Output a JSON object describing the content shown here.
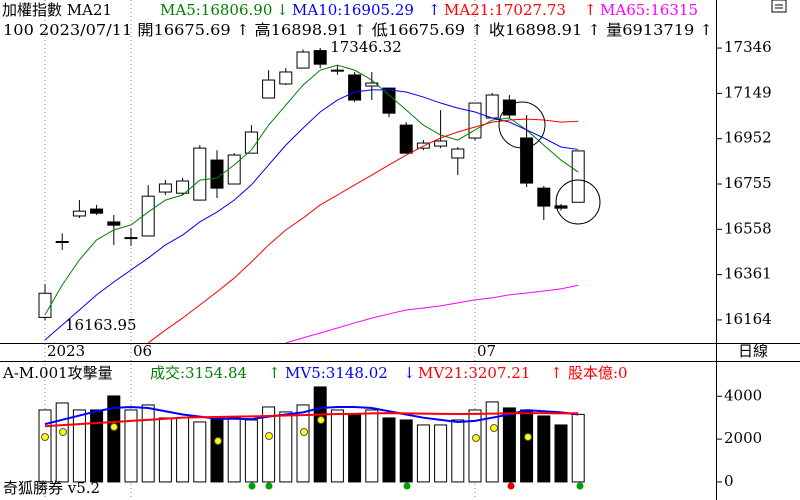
{
  "chart_data": [
    {
      "type": "candlestick",
      "header": [
        {
          "text": "加權指數 MA21",
          "color": "#000000"
        },
        {
          "text": "MA5:16806.90",
          "color": "#008000"
        },
        {
          "text": "↓",
          "color": "#008000"
        },
        {
          "text": "MA10:16905.29",
          "color": "#0000ff"
        },
        {
          "text": "↑",
          "color": "#0000ff"
        },
        {
          "text": "MA21:17027.73",
          "color": "#ff0000"
        },
        {
          "text": "↑",
          "color": "#ff0000"
        },
        {
          "text": "MA65:16315",
          "color": "#ff00ff"
        }
      ],
      "subheader": "100 2023/07/11 開16675.69 ↑ 高16898.91 ↑ 低16675.69 ↑ 收16898.91 ↑ 量6913719 ↑",
      "period_label": "日線",
      "annotations": [
        {
          "text": "17346.32",
          "index": 16
        },
        {
          "text": "16163.95",
          "index": 0
        }
      ],
      "categories": [
        "2023",
        null,
        null,
        null,
        null,
        "06",
        null,
        null,
        null,
        null,
        null,
        null,
        null,
        null,
        null,
        null,
        null,
        null,
        null,
        null,
        null,
        null,
        null,
        null,
        null,
        "07",
        null,
        null,
        null,
        null,
        null,
        null
      ],
      "open": [
        16175,
        16505,
        16616,
        16646,
        16590,
        16520,
        16529,
        16720,
        16715,
        16685,
        16859,
        16755,
        16889,
        17129,
        17190,
        17259,
        17335,
        17250,
        17229,
        17181,
        17172,
        17011,
        16911,
        16920,
        16868,
        16955,
        17042,
        17120,
        16955,
        16737,
        16660,
        16675.69
      ],
      "high": [
        16320,
        16540,
        16685,
        16664,
        16620,
        16563,
        16750,
        16772,
        16781,
        16924,
        16902,
        16889,
        17011,
        17250,
        17259,
        17340,
        17346.32,
        17270,
        17242,
        17242,
        17172,
        17024,
        16946,
        17076,
        16916,
        17107,
        17151,
        17142,
        17055,
        16746,
        16668,
        16898.91
      ],
      "low": [
        16163.95,
        16468,
        16607,
        16620,
        16490,
        16486,
        16529,
        16707,
        16707,
        16685,
        16694,
        16755,
        16889,
        17129,
        17185,
        17259,
        17259,
        17230,
        17111,
        17120,
        17046,
        16889,
        16902,
        16911,
        16794,
        16946,
        17042,
        17042,
        16742,
        16598,
        16640,
        16675.69
      ],
      "close": [
        16280,
        16505,
        16637,
        16628,
        16576,
        16522,
        16702,
        16755,
        16768,
        16911,
        16737,
        16881,
        16981,
        17207,
        17242,
        17329,
        17276,
        17250,
        17120,
        17194,
        17063,
        16889,
        16933,
        16942,
        16907,
        17107,
        17142,
        17055,
        16759,
        16659,
        16650,
        16898.91
      ],
      "up_color": "#ffffff",
      "down_color": "#000000",
      "series": [
        {
          "name": "MA5",
          "color": "#008000",
          "values": [
            16186,
            16316,
            16425,
            16512,
            16555,
            16577,
            16633,
            16685,
            16707,
            16772,
            16781,
            16838,
            16903,
            17011,
            17098,
            17185,
            17250,
            17272,
            17250,
            17207,
            17142,
            17077,
            17011,
            16968,
            16946,
            16990,
            17033,
            17042,
            16990,
            16924,
            16859,
            16806.9
          ]
        },
        {
          "name": "MA10",
          "color": "#0000ff",
          "values": [
            16077,
            16142,
            16207,
            16273,
            16329,
            16381,
            16433,
            16490,
            16533,
            16590,
            16633,
            16685,
            16751,
            16838,
            16924,
            16998,
            17068,
            17120,
            17155,
            17164,
            17164,
            17155,
            17133,
            17107,
            17085,
            17068,
            17042,
            17024,
            16990,
            16955,
            16916,
            16905.29
          ]
        },
        {
          "name": "MA21",
          "color": "#ff0000",
          "values": [
            null,
            null,
            null,
            null,
            null,
            null,
            16064,
            16120,
            16172,
            16229,
            16286,
            16346,
            16416,
            16490,
            16555,
            16607,
            16664,
            16707,
            16751,
            16794,
            16838,
            16881,
            16920,
            16955,
            16981,
            17003,
            17024,
            17033,
            17037,
            17033,
            17024,
            17027.73
          ]
        },
        {
          "name": "MA65",
          "color": "#ff00ff",
          "values": [
            null,
            null,
            null,
            null,
            null,
            null,
            null,
            null,
            null,
            null,
            null,
            null,
            null,
            null,
            16064,
            16086,
            16107,
            16129,
            16151,
            16172,
            16190,
            16207,
            16216,
            16225,
            16238,
            16251,
            16260,
            16273,
            16281,
            16290,
            16299,
            16315
          ]
        }
      ],
      "ylim": [
        16055,
        17555
      ],
      "yticks": [
        16164,
        16361,
        16558,
        16755,
        16952,
        17149,
        17346
      ]
    },
    {
      "type": "bar",
      "header": [
        {
          "text": "A-M.001攻擊量",
          "color": "#000000"
        },
        {
          "text": "成交:3154.84",
          "color": "#008000"
        },
        {
          "text": "↑",
          "color": "#008000"
        },
        {
          "text": "MV5:3148.02",
          "color": "#0000ff"
        },
        {
          "text": "↓",
          "color": "#0000ff"
        },
        {
          "text": "MV21:3207.21",
          "color": "#ff0000"
        },
        {
          "text": "↑",
          "color": "#ff0000"
        },
        {
          "text": "股本億:0",
          "color": "#ff0000"
        }
      ],
      "footer": "奇狐勝券 v5.2",
      "values": [
        3361,
        3688,
        3361,
        3361,
        4015,
        3361,
        3595,
        2988,
        2988,
        2801,
        2988,
        2988,
        2894,
        3501,
        3268,
        3595,
        4435,
        3361,
        3128,
        3361,
        2988,
        2894,
        2661,
        2661,
        2894,
        3361,
        3735,
        3455,
        3361,
        3081,
        2661,
        3154.84
      ],
      "series": [
        {
          "name": "MV5",
          "color": "#0000ff",
          "values": [
            2700,
            2900,
            3100,
            3300,
            3450,
            3500,
            3450,
            3300,
            3150,
            3050,
            2950,
            2950,
            2930,
            3050,
            3150,
            3250,
            3450,
            3500,
            3500,
            3450,
            3300,
            3150,
            3000,
            2900,
            2800,
            2850,
            3000,
            3150,
            3350,
            3300,
            3250,
            3148.02
          ]
        },
        {
          "name": "MV21",
          "color": "#ff0000",
          "values": [
            2600,
            2650,
            2700,
            2750,
            2800,
            2850,
            2900,
            2950,
            3000,
            3020,
            3030,
            3050,
            3060,
            3080,
            3100,
            3120,
            3150,
            3170,
            3180,
            3200,
            3210,
            3200,
            3190,
            3180,
            3170,
            3180,
            3190,
            3200,
            3210,
            3210,
            3200,
            3207.21
          ]
        }
      ],
      "ylim": [
        -750,
        5600
      ],
      "yticks": [
        0,
        2000,
        4000
      ]
    }
  ]
}
